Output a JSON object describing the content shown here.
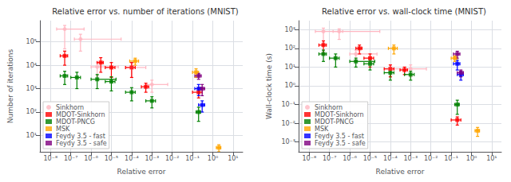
{
  "chart_data": [
    {
      "type": "scatter",
      "title": "Relative error vs. number of iterations (MNIST)",
      "xlabel": "Relative error",
      "ylabel": "Number of iterations",
      "log": true,
      "grid": true,
      "legend": "lower left",
      "xlim": [
        3e-09,
        30.0
      ],
      "ylim": [
        2,
        800000.0
      ],
      "xticks": [
        {
          "value": 1e-08,
          "label": "10⁻⁸"
        },
        {
          "value": 1e-07,
          "label": "10⁻⁷"
        },
        {
          "value": 1e-06,
          "label": "10⁻⁶"
        },
        {
          "value": 1e-05,
          "label": "10⁻⁵"
        },
        {
          "value": 0.0001,
          "label": "10⁻⁴"
        },
        {
          "value": 0.001,
          "label": "10⁻³"
        },
        {
          "value": 0.01,
          "label": "10⁻²"
        },
        {
          "value": 0.1,
          "label": "10⁻¹"
        },
        {
          "value": 1,
          "label": "10⁰"
        },
        {
          "value": 10,
          "label": "10¹"
        }
      ],
      "yticks": [
        {
          "value": 10,
          "label": "10¹"
        },
        {
          "value": 100,
          "label": "10²"
        },
        {
          "value": 1000,
          "label": "10³"
        },
        {
          "value": 10000,
          "label": "10⁴"
        },
        {
          "value": 100000,
          "label": "10⁵"
        }
      ],
      "series": [
        {
          "name": "Sinkhorn",
          "color": "#ffb6c1",
          "marker": "circle",
          "x": [
            5e-08,
            3e-07,
            2e-06,
            0.0001,
            0.001
          ],
          "values": [
            350000.0,
            130000.0,
            8500.0,
            8000.0,
            1500.0
          ],
          "xerr_low": [
            3e-08,
            1.5e-07,
            1e-06,
            5e-05,
            0.0005
          ],
          "xerr_high": [
            4e-07,
            3e-05,
            2e-05,
            0.0004,
            0.005
          ],
          "yerr_low": [
            300000.0,
            90000.0,
            5000.0,
            5000.0,
            800.0
          ],
          "yerr_high": [
            150000.0,
            80000.0,
            5000.0,
            5000.0,
            800.0
          ]
        },
        {
          "name": "MDOT-Sinkhorn",
          "color": "#ff0000",
          "marker": "square",
          "x": [
            5e-08,
            3e-06,
            1e-05,
            0.0001,
            0.0005,
            0.2
          ],
          "values": [
            25000.0,
            13000.0,
            8000.0,
            8000.0,
            1200.0,
            700.0
          ],
          "xerr_low": [
            2e-08,
            1e-06,
            5e-06,
            5e-05,
            0.0002,
            0.1
          ],
          "xerr_high": [
            2e-08,
            1e-06,
            5e-06,
            5e-05,
            0.0002,
            0.1
          ],
          "yerr_low": [
            15000.0,
            8000.0,
            5000.0,
            5000.0,
            500.0,
            300.0
          ],
          "yerr_high": [
            15000.0,
            8000.0,
            5000.0,
            5000.0,
            500.0,
            300.0
          ]
        },
        {
          "name": "MDOT-PNCG",
          "color": "#008000",
          "marker": "square",
          "x": [
            5e-08,
            2e-07,
            2e-06,
            1e-05,
            0.0001,
            0.001,
            0.2
          ],
          "values": [
            3500.0,
            3000.0,
            2500.0,
            2000.0,
            700.0,
            300.0,
            100.0
          ],
          "xerr_low": [
            2e-08,
            1e-07,
            1e-06,
            5e-06,
            5e-05,
            0.0005,
            0.05
          ],
          "xerr_high": [
            2e-08,
            1e-07,
            1.5e-05,
            5e-06,
            5e-05,
            0.0005,
            0.05
          ],
          "yerr_low": [
            2000.0,
            2000.0,
            1500.0,
            1200.0,
            400.0,
            150.0,
            60.0
          ],
          "yerr_high": [
            2000.0,
            2000.0,
            1500.0,
            1200.0,
            400.0,
            150.0,
            60.0
          ]
        },
        {
          "name": "MSK",
          "color": "#ffa500",
          "marker": "square",
          "x": [
            0.00015,
            0.15,
            2.0
          ],
          "values": [
            15000.0,
            5000.0,
            3
          ],
          "xerr_low": [
            7e-05,
            0.05,
            0.5
          ],
          "xerr_high": [
            7e-05,
            0.05,
            0.5
          ],
          "yerr_low": [
            5000.0,
            2000.0,
            1
          ],
          "yerr_high": [
            5000.0,
            2000.0,
            1
          ]
        },
        {
          "name": "Feydy 3.5 - fast",
          "color": "#0000ff",
          "marker": "square",
          "x": [
            0.2,
            0.3
          ],
          "values": [
            1000.0,
            200.0
          ],
          "xerr_low": [
            0.07,
            0.1
          ],
          "xerr_high": [
            0.07,
            0.1
          ],
          "yerr_low": [
            500.0,
            100.0
          ],
          "yerr_high": [
            500.0,
            100.0
          ]
        },
        {
          "name": "Feydy 3.5 - safe",
          "color": "#800080",
          "marker": "square",
          "x": [
            0.2,
            0.3
          ],
          "values": [
            3500.0,
            1000.0
          ],
          "xerr_low": [
            0.07,
            0.1
          ],
          "xerr_high": [
            0.07,
            0.1
          ],
          "yerr_low": [
            1000.0,
            500.0
          ],
          "yerr_high": [
            1000.0,
            500.0
          ]
        }
      ]
    },
    {
      "type": "scatter",
      "title": "Relative error vs. wall-clock time (MNIST)",
      "xlabel": "Relative error",
      "ylabel": "Wall-clock time (s)",
      "log": true,
      "grid": true,
      "legend": "lower left",
      "xlim": [
        3e-09,
        30.0
      ],
      "ylim": [
        0.0003,
        3000.0
      ],
      "xticks": [
        {
          "value": 1e-08,
          "label": "10⁻⁸"
        },
        {
          "value": 1e-07,
          "label": "10⁻⁷"
        },
        {
          "value": 1e-06,
          "label": "10⁻⁶"
        },
        {
          "value": 1e-05,
          "label": "10⁻⁵"
        },
        {
          "value": 0.0001,
          "label": "10⁻⁴"
        },
        {
          "value": 0.001,
          "label": "10⁻³"
        },
        {
          "value": 0.01,
          "label": "10⁻²"
        },
        {
          "value": 0.1,
          "label": "10⁻¹"
        },
        {
          "value": 1,
          "label": "10⁰"
        },
        {
          "value": 10,
          "label": "10¹"
        }
      ],
      "yticks": [
        {
          "value": 0.001,
          "label": "10⁻³"
        },
        {
          "value": 0.01,
          "label": "10⁻²"
        },
        {
          "value": 0.1,
          "label": "10⁻¹"
        },
        {
          "value": 1,
          "label": "10⁰"
        },
        {
          "value": 10,
          "label": "10¹"
        },
        {
          "value": 100,
          "label": "10²"
        },
        {
          "value": 1000,
          "label": "10³"
        }
      ],
      "series": [
        {
          "name": "Sinkhorn",
          "color": "#ffb6c1",
          "marker": "circle",
          "x": [
            5e-08,
            3e-07,
            2e-06,
            0.0001,
            0.001
          ],
          "values": [
            800.0,
            800.0,
            50.0,
            8,
            8
          ],
          "xerr_low": [
            3e-08,
            1.5e-07,
            1e-06,
            5e-05,
            0.0005
          ],
          "xerr_high": [
            4e-07,
            3e-05,
            2e-05,
            0.0004,
            0.005
          ],
          "yerr_low": [
            600.0,
            500.0,
            30.0,
            5,
            5
          ],
          "yerr_high": [
            400.0,
            300.0,
            30.0,
            5,
            5
          ]
        },
        {
          "name": "MDOT-Sinkhorn",
          "color": "#ff0000",
          "marker": "square",
          "x": [
            5e-08,
            3e-06,
            1e-05,
            0.0001,
            0.0005,
            0.2
          ],
          "values": [
            150.0,
            100.0,
            30.0,
            8,
            7,
            0.015
          ],
          "xerr_low": [
            2e-08,
            1e-06,
            5e-06,
            5e-05,
            0.0002,
            0.1
          ],
          "xerr_high": [
            2e-08,
            1e-06,
            5e-06,
            5e-05,
            0.0002,
            0.1
          ],
          "yerr_low": [
            100.0,
            50.0,
            20.0,
            5,
            3,
            0.007
          ],
          "yerr_high": [
            100.0,
            50.0,
            20.0,
            5,
            3,
            0.007
          ]
        },
        {
          "name": "MDOT-PNCG",
          "color": "#008000",
          "marker": "square",
          "x": [
            5e-08,
            2e-07,
            2e-06,
            1e-05,
            0.0001,
            0.001,
            0.2
          ],
          "values": [
            50.0,
            30.0,
            20.0,
            15.0,
            5,
            4,
            0.1
          ],
          "xerr_low": [
            2e-08,
            1e-07,
            1e-06,
            5e-06,
            5e-05,
            0.0005,
            0.05
          ],
          "xerr_high": [
            2e-08,
            1e-07,
            1.5e-05,
            5e-06,
            5e-05,
            0.0005,
            0.05
          ],
          "yerr_low": [
            30.0,
            20.0,
            10.0,
            8,
            3,
            2,
            0.07
          ],
          "yerr_high": [
            30.0,
            20.0,
            10.0,
            8,
            3,
            2,
            0.07
          ]
        },
        {
          "name": "MSK",
          "color": "#ffa500",
          "marker": "square",
          "x": [
            0.00015,
            0.15,
            2.0
          ],
          "values": [
            100.0,
            30.0,
            0.004
          ],
          "xerr_low": [
            7e-05,
            0.05,
            0.5
          ],
          "xerr_high": [
            7e-05,
            0.05,
            0.5
          ],
          "yerr_low": [
            50.0,
            10.0,
            0.002
          ],
          "yerr_high": [
            50.0,
            10.0,
            0.002
          ]
        },
        {
          "name": "Feydy 3.5 - fast",
          "color": "#0000ff",
          "marker": "square",
          "x": [
            0.2,
            0.3
          ],
          "values": [
            15.0,
            4
          ],
          "xerr_low": [
            0.07,
            0.1
          ],
          "xerr_high": [
            0.07,
            0.1
          ],
          "yerr_low": [
            8,
            2
          ],
          "yerr_high": [
            8,
            2
          ]
        },
        {
          "name": "Feydy 3.5 - safe",
          "color": "#800080",
          "marker": "square",
          "x": [
            0.2,
            0.3
          ],
          "values": [
            50.0,
            5
          ],
          "xerr_low": [
            0.07,
            0.1
          ],
          "xerr_high": [
            0.07,
            0.1
          ],
          "yerr_low": [
            20.0,
            2
          ],
          "yerr_high": [
            20.0,
            2
          ]
        }
      ]
    }
  ]
}
